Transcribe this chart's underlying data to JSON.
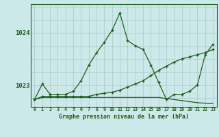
{
  "title": "Graphe pression niveau de la mer (hPa)",
  "background_color": "#cde8e8",
  "grid_color": "#b0cccc",
  "line_color": "#1a5c1a",
  "xlim": [
    -0.5,
    23.5
  ],
  "ylim": [
    1022.58,
    1024.55
  ],
  "yticks": [
    1023,
    1024
  ],
  "xticks": [
    0,
    1,
    2,
    3,
    4,
    5,
    6,
    7,
    8,
    9,
    10,
    11,
    12,
    13,
    14,
    15,
    16,
    17,
    18,
    19,
    20,
    21,
    22,
    23
  ],
  "series1_x": [
    0,
    1,
    2,
    3,
    4,
    5,
    6,
    7,
    8,
    9,
    10,
    11,
    12,
    13,
    14,
    15,
    16,
    17,
    18,
    19,
    20,
    21,
    22,
    23
  ],
  "series1_y": [
    1022.72,
    1023.02,
    1022.82,
    1022.82,
    1022.82,
    1022.88,
    1023.08,
    1023.38,
    1023.62,
    1023.82,
    1024.05,
    1024.38,
    1023.85,
    1023.75,
    1023.68,
    1023.38,
    1023.05,
    1022.72,
    1022.82,
    1022.82,
    1022.88,
    1023.0,
    1023.58,
    1023.78
  ],
  "series2_x": [
    0,
    1,
    2,
    3,
    4,
    5,
    6,
    7,
    8,
    9,
    10,
    11,
    12,
    13,
    14,
    15,
    16,
    17,
    18,
    19,
    20,
    21,
    22,
    23
  ],
  "series2_y": [
    1022.72,
    1022.78,
    1022.78,
    1022.78,
    1022.78,
    1022.78,
    1022.78,
    1022.78,
    1022.82,
    1022.84,
    1022.86,
    1022.9,
    1022.96,
    1023.02,
    1023.08,
    1023.18,
    1023.28,
    1023.36,
    1023.44,
    1023.5,
    1023.54,
    1023.58,
    1023.62,
    1023.68
  ],
  "series3_x": [
    0,
    1,
    2,
    3,
    4,
    5,
    6,
    7,
    8,
    9,
    10,
    11,
    12,
    13,
    14,
    15,
    16,
    17,
    18,
    19,
    20,
    21,
    22,
    23
  ],
  "series3_y": [
    1022.72,
    1022.76,
    1022.76,
    1022.76,
    1022.76,
    1022.76,
    1022.76,
    1022.76,
    1022.76,
    1022.76,
    1022.76,
    1022.76,
    1022.76,
    1022.76,
    1022.76,
    1022.76,
    1022.76,
    1022.74,
    1022.72,
    1022.7,
    1022.68,
    1022.66,
    1022.65,
    1022.64
  ]
}
